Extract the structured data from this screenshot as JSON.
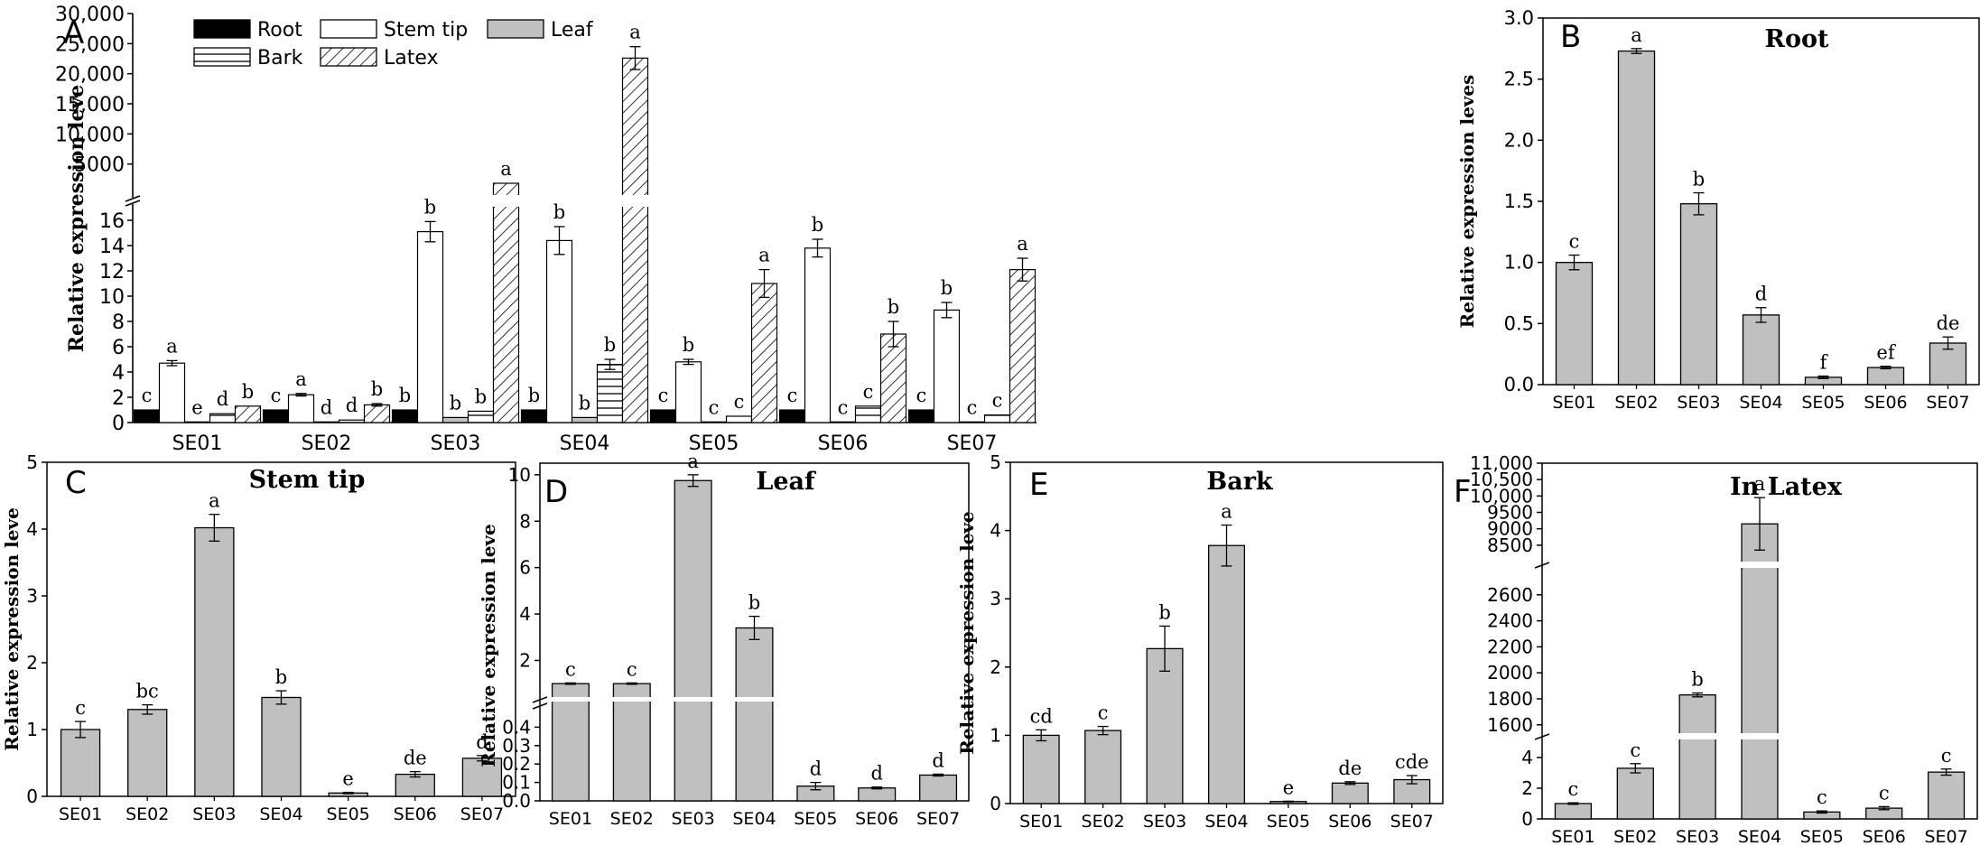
{
  "chart_data": [
    {
      "panel": "A",
      "type": "bar",
      "title": "",
      "xlabel": "",
      "ylabel": "Relative expression leve",
      "categories": [
        "SE01",
        "SE02",
        "SE03",
        "SE04",
        "SE05",
        "SE06",
        "SE07"
      ],
      "legend": [
        "Root",
        "Bark",
        "Stem tip",
        "Latex",
        "Leaf"
      ],
      "ylim_lower": [
        0,
        17
      ],
      "ylim_upper": [
        0,
        30000
      ],
      "yticks_lower": [
        "0",
        "2",
        "4",
        "6",
        "8",
        "10",
        "12",
        "14",
        "16"
      ],
      "yticks_upper": [
        "5000",
        "10,000",
        "15,000",
        "20,000",
        "25,000",
        "30,000"
      ],
      "series": [
        {
          "name": "Root",
          "color": "#000000",
          "values": [
            1,
            1,
            1,
            1,
            1,
            1,
            1
          ],
          "errors": [
            0,
            0,
            0,
            0,
            0,
            0,
            0
          ],
          "letters": [
            "c",
            "c",
            "b",
            "b",
            "c",
            "c",
            "c"
          ]
        },
        {
          "name": "Stem tip",
          "color": "#ffffff",
          "values": [
            4.7,
            2.2,
            15.1,
            14.4,
            4.8,
            13.8,
            8.9
          ],
          "errors": [
            0.2,
            0.1,
            0.8,
            1.1,
            0.2,
            0.7,
            0.6
          ],
          "letters": [
            "a",
            "a",
            "b",
            "b",
            "b",
            "b",
            "b"
          ]
        },
        {
          "name": "Leaf",
          "color": "#c0c0c0",
          "values": [
            0.05,
            0.05,
            0.4,
            0.4,
            0.05,
            0.05,
            0.05
          ],
          "errors": [
            0,
            0,
            0,
            0,
            0,
            0,
            0
          ],
          "letters": [
            "e",
            "d",
            "b",
            "b",
            "c",
            "c",
            "c"
          ]
        },
        {
          "name": "Bark",
          "color": "#ffffff",
          "values": [
            0.7,
            0.2,
            0.9,
            4.6,
            0.5,
            1.3,
            0.6
          ],
          "errors": [
            0,
            0,
            0,
            0.4,
            0,
            0,
            0
          ],
          "letters": [
            "d",
            "d",
            "b",
            "b",
            "c",
            "c",
            "c"
          ]
        },
        {
          "name": "Latex",
          "color": "#ffffff",
          "values": [
            1.3,
            1.4,
            1800,
            22600,
            11,
            7,
            12.1
          ],
          "errors": [
            0,
            0.1,
            0,
            1900,
            1.1,
            1.0,
            0.9
          ],
          "letters": [
            "b",
            "b",
            "a",
            "a",
            "a",
            "b",
            "a"
          ]
        }
      ]
    },
    {
      "panel": "B",
      "type": "bar",
      "title": "Root",
      "ylabel": "Relative expression leves",
      "categories": [
        "SE01",
        "SE02",
        "SE03",
        "SE04",
        "SE05",
        "SE06",
        "SE07"
      ],
      "values": [
        1.0,
        2.73,
        1.48,
        0.57,
        0.06,
        0.14,
        0.34
      ],
      "errors": [
        0.06,
        0.02,
        0.09,
        0.06,
        0.01,
        0.01,
        0.05
      ],
      "letters": [
        "c",
        "a",
        "b",
        "d",
        "f",
        "ef",
        "de"
      ],
      "ylim": [
        0,
        3.0
      ],
      "yticks": [
        "0.0",
        "0.5",
        "1.0",
        "1.5",
        "2.0",
        "2.5",
        "3.0"
      ]
    },
    {
      "panel": "C",
      "type": "bar",
      "title": "Stem tip",
      "ylabel": "Relative expression leve",
      "categories": [
        "SE01",
        "SE02",
        "SE03",
        "SE04",
        "SE05",
        "SE06",
        "SE07"
      ],
      "values": [
        1.0,
        1.3,
        4.02,
        1.48,
        0.05,
        0.33,
        0.57
      ],
      "errors": [
        0.12,
        0.07,
        0.2,
        0.1,
        0.01,
        0.04,
        0.04
      ],
      "letters": [
        "c",
        "bc",
        "a",
        "b",
        "e",
        "de",
        "d"
      ],
      "ylim": [
        0,
        5
      ],
      "yticks": [
        "0",
        "1",
        "2",
        "3",
        "4",
        "5"
      ]
    },
    {
      "panel": "D",
      "type": "bar",
      "title": "Leaf",
      "ylabel": "Relative expression leve",
      "categories": [
        "SE01",
        "SE02",
        "SE03",
        "SE04",
        "SE05",
        "SE06",
        "SE07"
      ],
      "values": [
        1.0,
        1.0,
        9.75,
        3.4,
        0.08,
        0.07,
        0.14
      ],
      "errors": [
        0.03,
        0.03,
        0.25,
        0.5,
        0.02,
        0.005,
        0.005
      ],
      "letters": [
        "c",
        "c",
        "a",
        "b",
        "d",
        "d",
        "d"
      ],
      "ylim_lower": [
        0,
        0.5
      ],
      "ylim_upper": [
        0.5,
        10.5
      ],
      "yticks_lower": [
        "0.0",
        "0.1",
        "0.2",
        "0.3",
        "0.4"
      ],
      "yticks_upper": [
        "2",
        "4",
        "6",
        "8",
        "10"
      ]
    },
    {
      "panel": "E",
      "type": "bar",
      "title": "Bark",
      "ylabel": "Relative expression leve",
      "categories": [
        "SE01",
        "SE02",
        "SE03",
        "SE04",
        "SE05",
        "SE06",
        "SE07"
      ],
      "values": [
        1.0,
        1.07,
        2.27,
        3.78,
        0.03,
        0.3,
        0.35
      ],
      "errors": [
        0.08,
        0.06,
        0.33,
        0.3,
        0.005,
        0.02,
        0.06
      ],
      "letters": [
        "cd",
        "c",
        "b",
        "a",
        "e",
        "de",
        "cde"
      ],
      "ylim": [
        0,
        5
      ],
      "yticks": [
        "0",
        "1",
        "2",
        "3",
        "4",
        "5"
      ]
    },
    {
      "panel": "F",
      "type": "bar",
      "title": "In Latex",
      "ylabel": "",
      "categories": [
        "SE01",
        "SE02",
        "SE03",
        "SE04",
        "SE05",
        "SE06",
        "SE07"
      ],
      "values": [
        1.0,
        3.3,
        1830,
        9150,
        0.45,
        0.7,
        3.05
      ],
      "errors": [
        0.05,
        0.3,
        15,
        800,
        0.07,
        0.1,
        0.2
      ],
      "letters": [
        "c",
        "c",
        "b",
        "a",
        "c",
        "c",
        "c"
      ],
      "ylim_lower": [
        0,
        5
      ],
      "ylim_mid": [
        1550,
        2800
      ],
      "ylim_upper": [
        8000,
        11000
      ],
      "yticks_lower": [
        "0",
        "2",
        "4"
      ],
      "yticks_mid": [
        "1600",
        "1800",
        "2000",
        "2200",
        "2400",
        "2600"
      ],
      "yticks_upper": [
        "8500",
        "9000",
        "9500",
        "10,000",
        "10,500",
        "11,000"
      ]
    }
  ]
}
